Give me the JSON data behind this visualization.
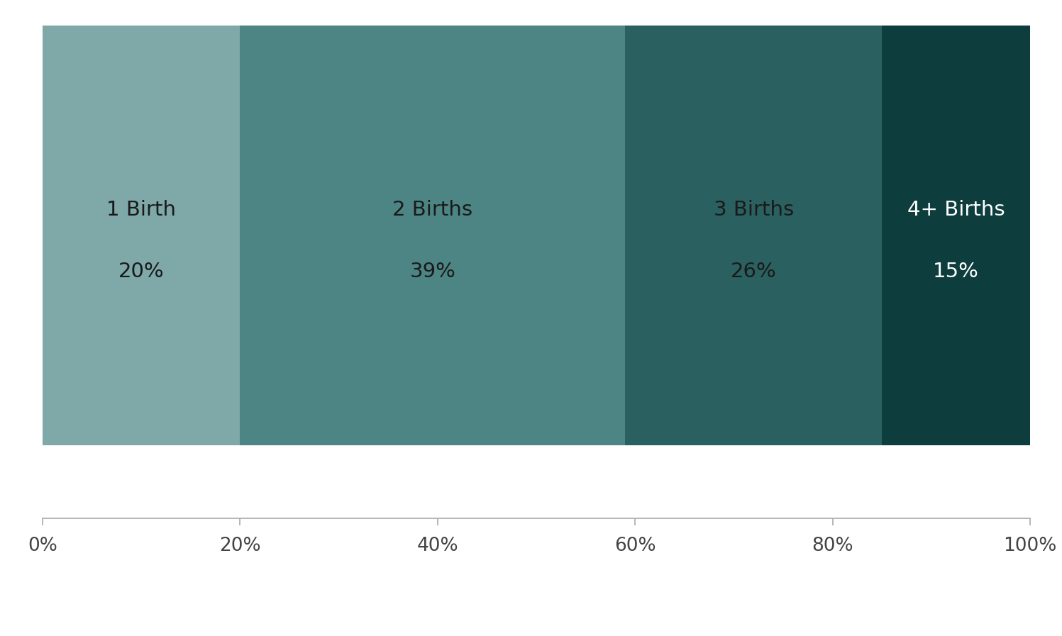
{
  "segments": [
    {
      "label": "1 Birth",
      "pct_label": "20%",
      "value": 20,
      "color": "#7fa8a8",
      "text_color": "#1a1a1a"
    },
    {
      "label": "2 Births",
      "pct_label": "39%",
      "value": 39,
      "color": "#4d8585",
      "text_color": "#1a1a1a"
    },
    {
      "label": "3 Births",
      "pct_label": "26%",
      "value": 26,
      "color": "#2a6060",
      "text_color": "#1a1a1a"
    },
    {
      "label": "4+ Births",
      "pct_label": "15%",
      "value": 15,
      "color": "#0d3d3d",
      "text_color": "#ffffff"
    }
  ],
  "x_ticks": [
    0,
    20,
    40,
    60,
    80,
    100
  ],
  "x_tick_labels": [
    "0%",
    "20%",
    "40%",
    "60%",
    "80%",
    "100%"
  ],
  "background_color": "#ffffff",
  "label_fontsize": 21,
  "tick_fontsize": 19,
  "axis_color": "#aaaaaa"
}
